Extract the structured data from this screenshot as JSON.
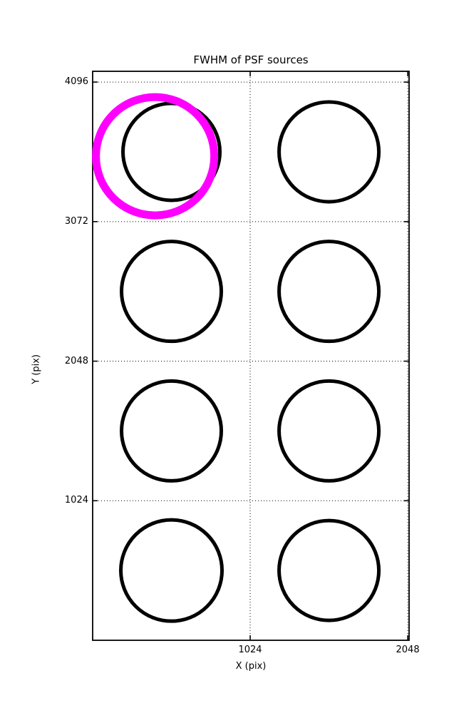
{
  "figure": {
    "background": "#ffffff",
    "axes_color": "#000000",
    "grid_style": "dotted"
  },
  "chart_data": {
    "type": "scatter",
    "title": "FWHM of PSF sources",
    "xlabel": "X (pix)",
    "ylabel": "Y (pix)",
    "xlim": [
      0,
      2057
    ],
    "ylim": [
      0,
      4175
    ],
    "xticks": [
      {
        "label": "1024",
        "value": 1024
      },
      {
        "label": "2048",
        "value": 2048
      }
    ],
    "yticks": [
      {
        "label": "1024",
        "value": 1024
      },
      {
        "label": "2048",
        "value": 2048
      },
      {
        "label": "3072",
        "value": 3072
      },
      {
        "label": "4096",
        "value": 4096
      }
    ],
    "grid": {
      "on": true,
      "style": "dotted",
      "color": "#000000"
    },
    "legend": null,
    "series": [
      {
        "name": "psf-sources",
        "marker": "circle-outline",
        "color": "#000000",
        "stroke_px": 5,
        "points": [
          {
            "x": 512,
            "y": 3584,
            "radius_px": 68
          },
          {
            "x": 1536,
            "y": 3584,
            "radius_px": 70
          },
          {
            "x": 512,
            "y": 2560,
            "radius_px": 70
          },
          {
            "x": 1536,
            "y": 2560,
            "radius_px": 70
          },
          {
            "x": 512,
            "y": 1536,
            "radius_px": 70
          },
          {
            "x": 1536,
            "y": 1536,
            "radius_px": 70
          },
          {
            "x": 512,
            "y": 512,
            "radius_px": 71
          },
          {
            "x": 1536,
            "y": 512,
            "radius_px": 70
          }
        ]
      },
      {
        "name": "highlighted-source",
        "marker": "circle-outline",
        "color": "#ff00ff",
        "stroke_px": 11,
        "points": [
          {
            "x": 406,
            "y": 3552,
            "radius_px": 83
          }
        ]
      }
    ]
  }
}
